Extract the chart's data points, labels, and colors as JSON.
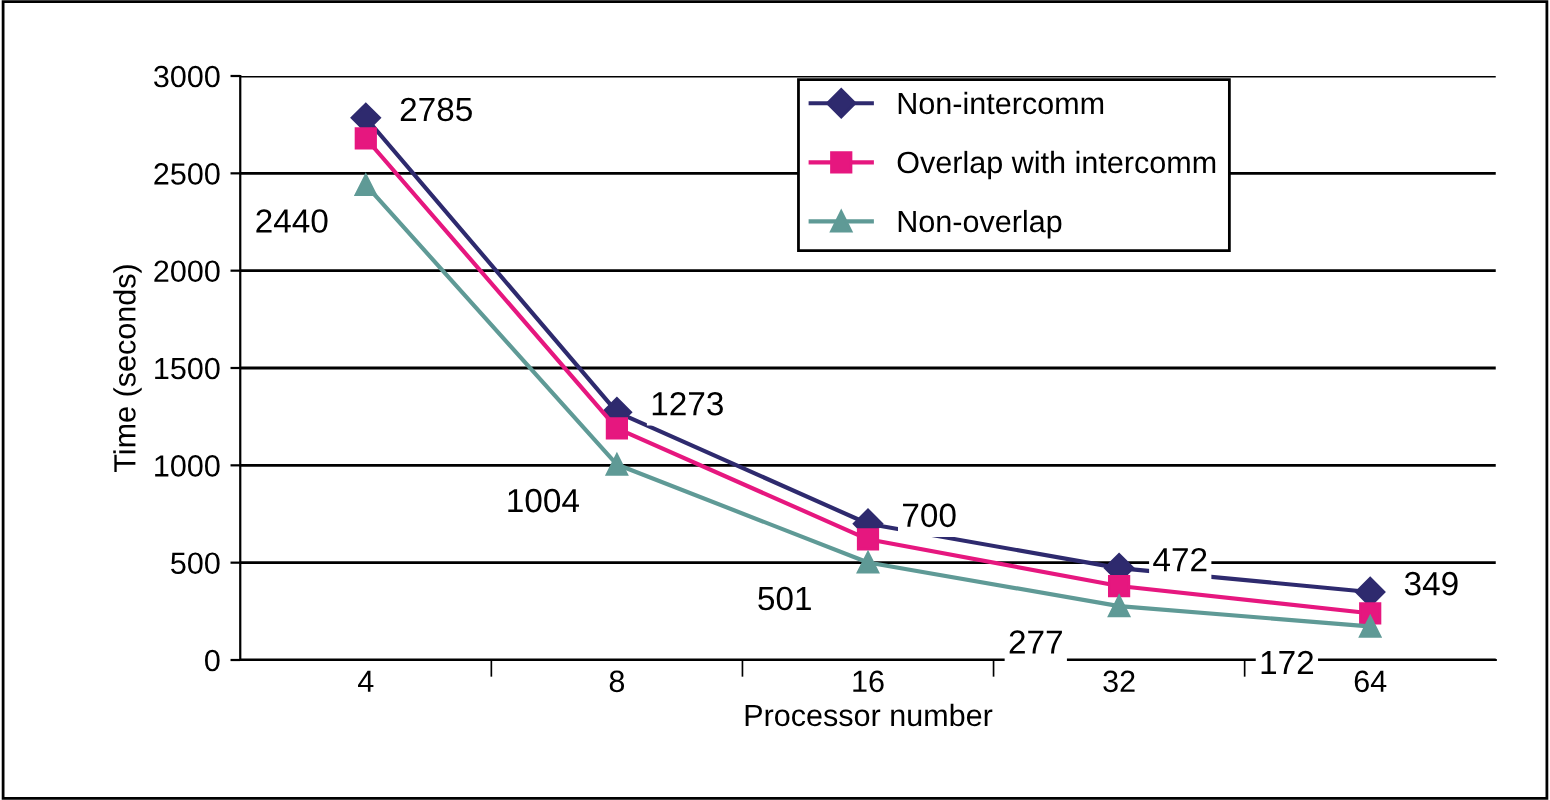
{
  "chart_data": {
    "type": "line",
    "xlabel": "Processor number",
    "ylabel": "Time (seconds)",
    "categories": [
      "4",
      "8",
      "16",
      "32",
      "64"
    ],
    "series": [
      {
        "name": "Non-intercomm",
        "color": "#2e2a6e",
        "marker": "diamond",
        "values": [
          2785,
          1273,
          700,
          472,
          349
        ],
        "value_labels": [
          "2785",
          "1273",
          "700",
          "472",
          "349"
        ]
      },
      {
        "name": "Overlap with intercomm",
        "color": "#e6177f",
        "marker": "square",
        "values": [
          2680,
          1190,
          620,
          380,
          240
        ]
      },
      {
        "name": "Non-overlap",
        "color": "#5f9a96",
        "marker": "triangle",
        "values": [
          2440,
          1004,
          501,
          277,
          172
        ],
        "value_labels": [
          "2440",
          "1004",
          "501",
          "277",
          "172"
        ]
      }
    ],
    "ylim": [
      0,
      3000
    ],
    "yticks": [
      0,
      500,
      1000,
      1500,
      2000,
      2500,
      3000
    ],
    "grid": "y",
    "legend": "top right",
    "line_style": "solid"
  }
}
